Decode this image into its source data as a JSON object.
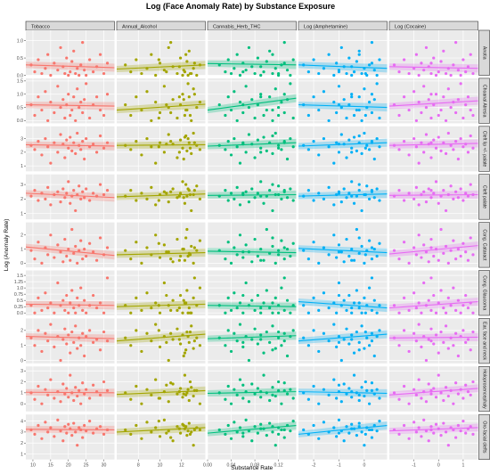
{
  "chart_data": {
    "type": "scatter",
    "title": "Log (Face Anomaly Rate) by Substance Exposure",
    "xlabel": "Substance Rate",
    "ylabel": "Log (Anomaly Rate)",
    "grid": true,
    "legend": "none",
    "columns": [
      {
        "name": "Tobacco",
        "color": "#f8766d",
        "xlim": [
          8,
          33
        ],
        "ticks": [
          10,
          15,
          20,
          25,
          30
        ],
        "points_x": [
          9.5,
          10.5,
          11.5,
          12.5,
          13.5,
          14.2,
          15.0,
          16.0,
          17.0,
          17.8,
          18.5,
          19.0,
          19.5,
          20.0,
          20.5,
          21.0,
          21.5,
          22.0,
          22.5,
          23.0,
          23.5,
          24.0,
          24.5,
          25.0,
          26.0,
          27.0,
          28.0,
          29.0,
          30.0,
          31.0
        ]
      },
      {
        "name": "Annual_Alcohol",
        "color": "#a3a500",
        "xlim": [
          6.0,
          14.2
        ],
        "ticks": [
          8,
          10,
          12
        ],
        "points_x": [
          6.8,
          7.3,
          7.8,
          8.3,
          8.8,
          9.2,
          9.6,
          10.0,
          10.4,
          10.8,
          11.2,
          11.6,
          11.9,
          12.1,
          12.3,
          12.5,
          12.7,
          12.9,
          13.1,
          13.4,
          13.7,
          11.0,
          12.2,
          12.6,
          9.9,
          10.6,
          11.8,
          12.4,
          12.8,
          13.2
        ]
      },
      {
        "name": "Cannabis_Herb_THC",
        "color": "#00bf7d",
        "xlim": [
          0.0,
          0.15
        ],
        "ticks": [
          0.0,
          0.04,
          0.08,
          0.12
        ],
        "tick_labels": [
          "0.00",
          "0.04",
          "0.08",
          "0.12"
        ],
        "points_x": [
          0.02,
          0.03,
          0.035,
          0.04,
          0.045,
          0.05,
          0.055,
          0.06,
          0.065,
          0.07,
          0.075,
          0.08,
          0.085,
          0.09,
          0.095,
          0.1,
          0.105,
          0.11,
          0.115,
          0.12,
          0.125,
          0.13,
          0.135,
          0.14,
          0.145,
          0.06,
          0.09,
          0.11,
          0.12,
          0.13
        ]
      },
      {
        "name": "Log (Amphetamine)",
        "color": "#00b0f6",
        "xlim": [
          -2.6,
          0.9
        ],
        "ticks": [
          -2,
          -1,
          0
        ],
        "points_x": [
          -2.4,
          -2.2,
          -2.0,
          -1.8,
          -1.6,
          -1.4,
          -1.2,
          -1.1,
          -1.0,
          -0.9,
          -0.8,
          -0.7,
          -0.6,
          -0.5,
          -0.4,
          -0.3,
          -0.2,
          -0.1,
          0.0,
          0.1,
          0.2,
          0.3,
          0.4,
          0.5,
          0.6,
          -1.0,
          -0.5,
          -0.2,
          0.05,
          0.3
        ]
      },
      {
        "name": "Log (Cocaine)",
        "color": "#e76bf3",
        "xlim": [
          -2.0,
          1.6
        ],
        "ticks": [
          -1,
          0,
          1
        ],
        "points_x": [
          -1.8,
          -1.6,
          -1.4,
          -1.2,
          -1.0,
          -0.9,
          -0.8,
          -0.7,
          -0.6,
          -0.5,
          -0.4,
          -0.3,
          -0.2,
          -0.1,
          0.0,
          0.1,
          0.2,
          0.3,
          0.4,
          0.5,
          0.6,
          0.7,
          0.8,
          0.9,
          1.0,
          1.1,
          1.2,
          1.3,
          1.4,
          -0.3
        ]
      }
    ],
    "rows": [
      {
        "name": "Anotia",
        "ylim": [
          0,
          1.3
        ],
        "ticks": [
          0.0,
          0.5,
          1.0
        ],
        "tick_labels": [
          "0.0",
          "0.5",
          "1.0"
        ],
        "trend": [
          [
            0.3,
            0.22
          ],
          [
            0.18,
            0.3
          ],
          [
            0.34,
            0.3
          ],
          [
            0.3,
            0.2
          ],
          [
            0.25,
            0.2
          ]
        ],
        "points_y": [
          0.3,
          0.1,
          0.45,
          0.05,
          0.2,
          0.6,
          0.0,
          0.35,
          0.15,
          0.8,
          0.25,
          0.05,
          0.5,
          0.0,
          0.1,
          0.4,
          0.7,
          0.05,
          0.2,
          0.0,
          0.3,
          0.95,
          0.15,
          0.0,
          0.45,
          0.1,
          0.25,
          0.6,
          0.05,
          0.35
        ]
      },
      {
        "name": "Choanal Atresia",
        "ylim": [
          -0.1,
          1.6
        ],
        "ticks": [
          0.0,
          0.5,
          1.0,
          1.5
        ],
        "tick_labels": [
          "0.0",
          "0.5",
          "1.0",
          "1.5"
        ],
        "trend": [
          [
            0.6,
            0.55
          ],
          [
            0.4,
            0.62
          ],
          [
            0.4,
            0.85
          ],
          [
            0.6,
            0.5
          ],
          [
            0.55,
            0.75
          ]
        ],
        "points_y": [
          0.6,
          0.2,
          0.9,
          0.4,
          1.1,
          0.0,
          0.7,
          0.3,
          1.3,
          0.5,
          0.8,
          0.1,
          0.6,
          1.0,
          0.2,
          0.4,
          0.9,
          0.0,
          1.2,
          0.5,
          0.7,
          0.3,
          0.8,
          1.4,
          0.1,
          0.6,
          0.9,
          0.4,
          0.2,
          1.0
        ]
      },
      {
        "name": "Cleft lip +/- palate",
        "ylim": [
          0.6,
          3.9
        ],
        "ticks": [
          1,
          2,
          3
        ],
        "trend": [
          [
            2.55,
            2.45
          ],
          [
            2.5,
            2.55
          ],
          [
            2.45,
            2.7
          ],
          [
            2.45,
            2.7
          ],
          [
            2.5,
            2.65
          ]
        ],
        "points_y": [
          2.5,
          2.2,
          2.8,
          1.8,
          3.0,
          2.4,
          1.2,
          2.7,
          2.0,
          3.3,
          2.6,
          1.6,
          2.9,
          2.3,
          3.1,
          2.1,
          2.7,
          1.9,
          3.4,
          2.5,
          2.2,
          2.8,
          1.5,
          3.0,
          2.4,
          2.6,
          2.0,
          3.2,
          2.3,
          2.7
        ]
      },
      {
        "name": "Cleft palate",
        "ylim": [
          0.6,
          3.7
        ],
        "ticks": [
          1,
          2,
          3
        ],
        "trend": [
          [
            2.4,
            2.1
          ],
          [
            2.15,
            2.35
          ],
          [
            2.25,
            2.3
          ],
          [
            2.2,
            2.35
          ],
          [
            2.25,
            2.3
          ]
        ],
        "points_y": [
          2.2,
          2.6,
          1.9,
          2.4,
          2.0,
          2.8,
          1.6,
          2.3,
          2.5,
          1.8,
          2.7,
          2.1,
          2.4,
          3.2,
          1.7,
          2.2,
          2.6,
          1.2,
          2.3,
          2.9,
          2.0,
          2.5,
          2.1,
          2.7,
          1.9,
          2.4,
          2.2,
          3.0,
          2.3,
          2.6
        ]
      },
      {
        "name": "Cong. Cataract",
        "ylim": [
          -0.3,
          2.9
        ],
        "ticks": [
          0,
          1,
          2
        ],
        "trend": [
          [
            1.15,
            0.55
          ],
          [
            0.6,
            0.75
          ],
          [
            0.85,
            0.75
          ],
          [
            1.05,
            0.75
          ],
          [
            0.65,
            1.25
          ]
        ],
        "points_y": [
          0.9,
          0.3,
          1.5,
          0.0,
          1.1,
          0.6,
          2.0,
          0.4,
          1.3,
          0.8,
          0.1,
          1.7,
          0.5,
          1.0,
          0.2,
          2.4,
          0.7,
          1.2,
          0.0,
          0.9,
          1.6,
          0.3,
          1.0,
          0.5,
          1.4,
          0.8,
          0.2,
          1.8,
          0.6,
          1.1
        ]
      },
      {
        "name": "Cong. Glaucoma",
        "ylim": [
          -0.1,
          1.7
        ],
        "ticks": [
          0.0,
          0.25,
          0.5,
          0.75,
          1.0,
          1.25,
          1.5
        ],
        "tick_labels": [
          "0.0",
          "0.25",
          "0.5",
          "0.75",
          "1.0",
          "1.25",
          "1.5"
        ],
        "trend": [
          [
            0.35,
            0.3
          ],
          [
            0.25,
            0.35
          ],
          [
            0.3,
            0.25
          ],
          [
            0.45,
            0.2
          ],
          [
            0.2,
            0.45
          ]
        ],
        "points_y": [
          0.3,
          0.0,
          0.6,
          0.1,
          0.8,
          0.2,
          0.4,
          0.0,
          1.2,
          0.3,
          0.5,
          0.1,
          0.7,
          0.0,
          0.4,
          0.9,
          0.2,
          0.0,
          0.6,
          0.3,
          1.0,
          0.1,
          0.5,
          0.0,
          0.3,
          0.7,
          0.2,
          0.4,
          0.0,
          1.4
        ]
      },
      {
        "name": "Ear, face and neck",
        "ylim": [
          -0.2,
          2.8
        ],
        "ticks": [
          0,
          1,
          2
        ],
        "trend": [
          [
            1.6,
            1.45
          ],
          [
            1.3,
            1.75
          ],
          [
            1.45,
            1.65
          ],
          [
            1.3,
            1.75
          ],
          [
            1.5,
            1.55
          ]
        ],
        "points_y": [
          1.5,
          1.0,
          2.0,
          0.6,
          1.8,
          1.3,
          2.4,
          0.9,
          1.6,
          0.0,
          1.4,
          2.1,
          1.1,
          1.7,
          0.5,
          1.9,
          1.2,
          2.3,
          0.8,
          1.5,
          1.0,
          1.8,
          0.3,
          1.6,
          2.0,
          1.2,
          1.4,
          0.7,
          1.9,
          1.3
        ]
      },
      {
        "name": "Holoprosencephaly",
        "ylim": [
          -0.7,
          3.4
        ],
        "ticks": [
          0,
          1,
          2,
          3
        ],
        "trend": [
          [
            1.05,
            1.0
          ],
          [
            0.85,
            1.2
          ],
          [
            0.95,
            1.1
          ],
          [
            1.1,
            0.95
          ],
          [
            0.8,
            1.4
          ]
        ],
        "points_y": [
          1.0,
          0.4,
          1.6,
          0.0,
          1.3,
          0.8,
          2.2,
          0.5,
          1.1,
          0.2,
          1.8,
          0.9,
          1.4,
          0.6,
          2.6,
          1.0,
          0.3,
          1.5,
          0.7,
          1.2,
          0.0,
          1.9,
          0.9,
          1.3,
          0.5,
          1.7,
          1.1,
          0.8,
          2.0,
          1.2
        ]
      },
      {
        "name": "Oro-facial clefts",
        "ylim": [
          0.5,
          4.6
        ],
        "ticks": [
          1,
          2,
          3,
          4
        ],
        "trend": [
          [
            3.25,
            3.2
          ],
          [
            3.0,
            3.4
          ],
          [
            2.9,
            3.6
          ],
          [
            2.8,
            3.6
          ],
          [
            3.1,
            3.4
          ]
        ],
        "points_y": [
          3.2,
          2.8,
          3.6,
          2.4,
          3.9,
          3.0,
          3.4,
          2.6,
          4.1,
          3.1,
          2.2,
          3.5,
          2.9,
          3.7,
          3.3,
          2.7,
          3.8,
          3.0,
          1.8,
          3.4,
          3.2,
          2.5,
          3.6,
          3.1,
          4.0,
          2.9,
          3.3,
          3.5,
          2.8,
          3.2
        ]
      }
    ]
  }
}
